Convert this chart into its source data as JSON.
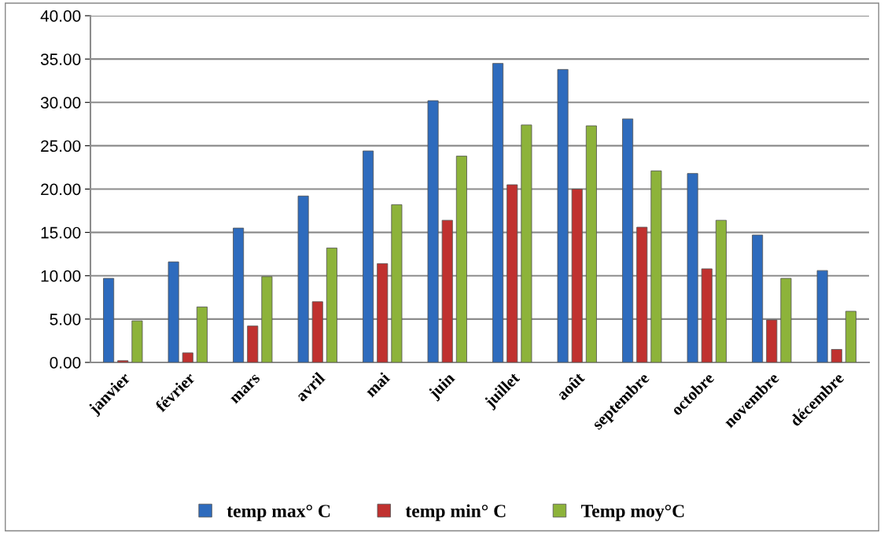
{
  "chart_data": {
    "type": "bar",
    "categories": [
      "janvier",
      "février",
      "mars",
      "avril",
      "mai",
      "juin",
      "juillet",
      "août",
      "septembre",
      "octobre",
      "novembre",
      "décembre"
    ],
    "series": [
      {
        "name": "temp max° C",
        "color": "#2e6bbd",
        "values": [
          9.7,
          11.6,
          15.5,
          19.2,
          24.4,
          30.2,
          34.5,
          33.8,
          28.1,
          21.8,
          14.7,
          10.6
        ]
      },
      {
        "name": "temp min° C",
        "color": "#c0312f",
        "values": [
          0.2,
          1.1,
          4.2,
          7.0,
          11.4,
          16.4,
          20.5,
          20.0,
          15.6,
          10.8,
          4.9,
          1.5
        ]
      },
      {
        "name": "Temp moy°C",
        "color": "#8db33a",
        "values": [
          4.8,
          6.4,
          9.9,
          13.2,
          18.2,
          23.8,
          27.4,
          27.3,
          22.1,
          16.4,
          9.7,
          5.9
        ]
      }
    ],
    "ylim": [
      0,
      40
    ],
    "yticks": [
      {
        "value": 0,
        "label": "0.00"
      },
      {
        "value": 5,
        "label": "5.00"
      },
      {
        "value": 10,
        "label": "10.00"
      },
      {
        "value": 15,
        "label": "15.00"
      },
      {
        "value": 20,
        "label": "20.00"
      },
      {
        "value": 25,
        "label": "25.00"
      },
      {
        "value": 30,
        "label": "30.00"
      },
      {
        "value": 35,
        "label": "35.00"
      },
      {
        "value": 40,
        "label": "40.00"
      }
    ],
    "grid": "y",
    "legend": "bottom"
  }
}
